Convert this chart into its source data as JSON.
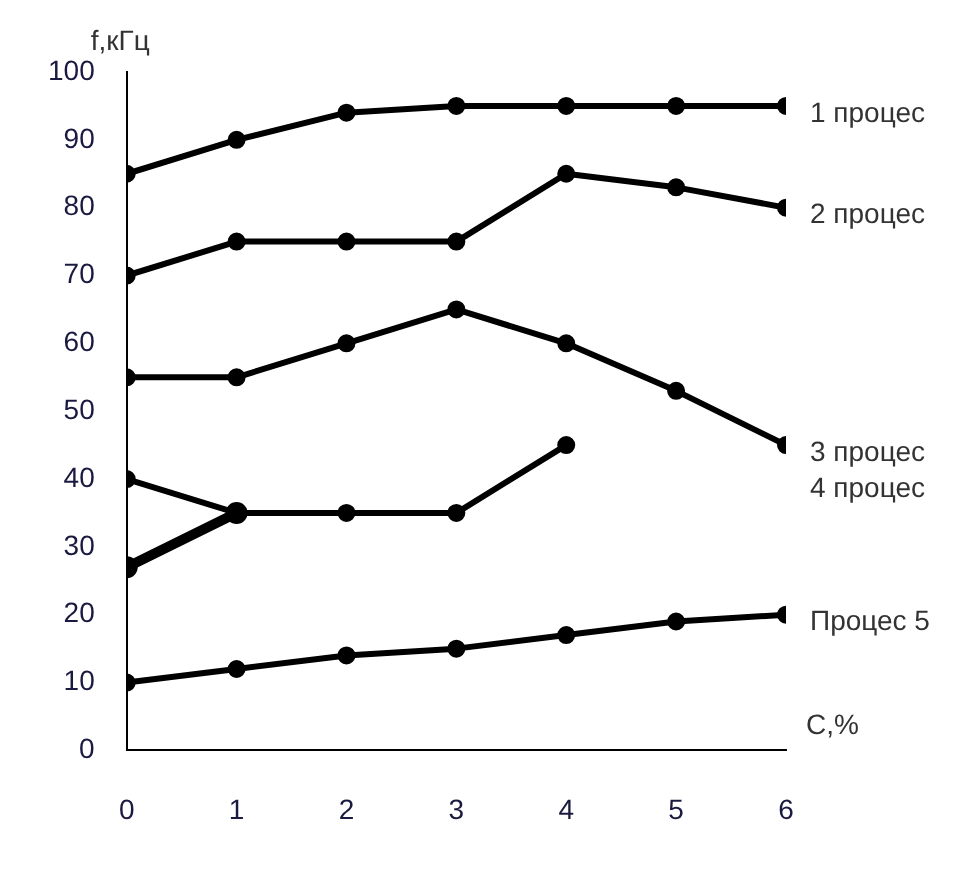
{
  "chart_data": {
    "type": "line",
    "xlabel": "C,%",
    "ylabel": "f,кГц",
    "x": [
      0,
      1,
      2,
      3,
      4,
      5,
      6
    ],
    "series": [
      {
        "name": "1 процес",
        "color": "#000000",
        "values": [
          85,
          90,
          94,
          95,
          95,
          95,
          95
        ]
      },
      {
        "name": "2 процес",
        "color": "#000000",
        "values": [
          70,
          75,
          75,
          75,
          85,
          83,
          80
        ]
      },
      {
        "name": "3 процес",
        "color": "#000000",
        "values": [
          55,
          55,
          60,
          65,
          60,
          53,
          45
        ]
      },
      {
        "name": "4 процес",
        "color": "#000000",
        "values": [
          40,
          35,
          35,
          35,
          45,
          null,
          null
        ]
      },
      {
        "color": "#000000",
        "x": [
          0,
          1
        ],
        "values": [
          27,
          35
        ]
      },
      {
        "name": "Процес 5",
        "color": "#000000",
        "values": [
          10,
          12,
          14,
          15,
          17,
          19,
          20
        ]
      }
    ],
    "xlim": [
      0,
      6
    ],
    "xticks": [
      0,
      1,
      2,
      3,
      4,
      5,
      6
    ],
    "ylim": [
      0,
      100
    ],
    "yticks": [
      0,
      10,
      20,
      30,
      40,
      50,
      60,
      70,
      80,
      90,
      100
    ],
    "grid": false,
    "legend": false,
    "marker": "circle",
    "line_style": "solid"
  }
}
